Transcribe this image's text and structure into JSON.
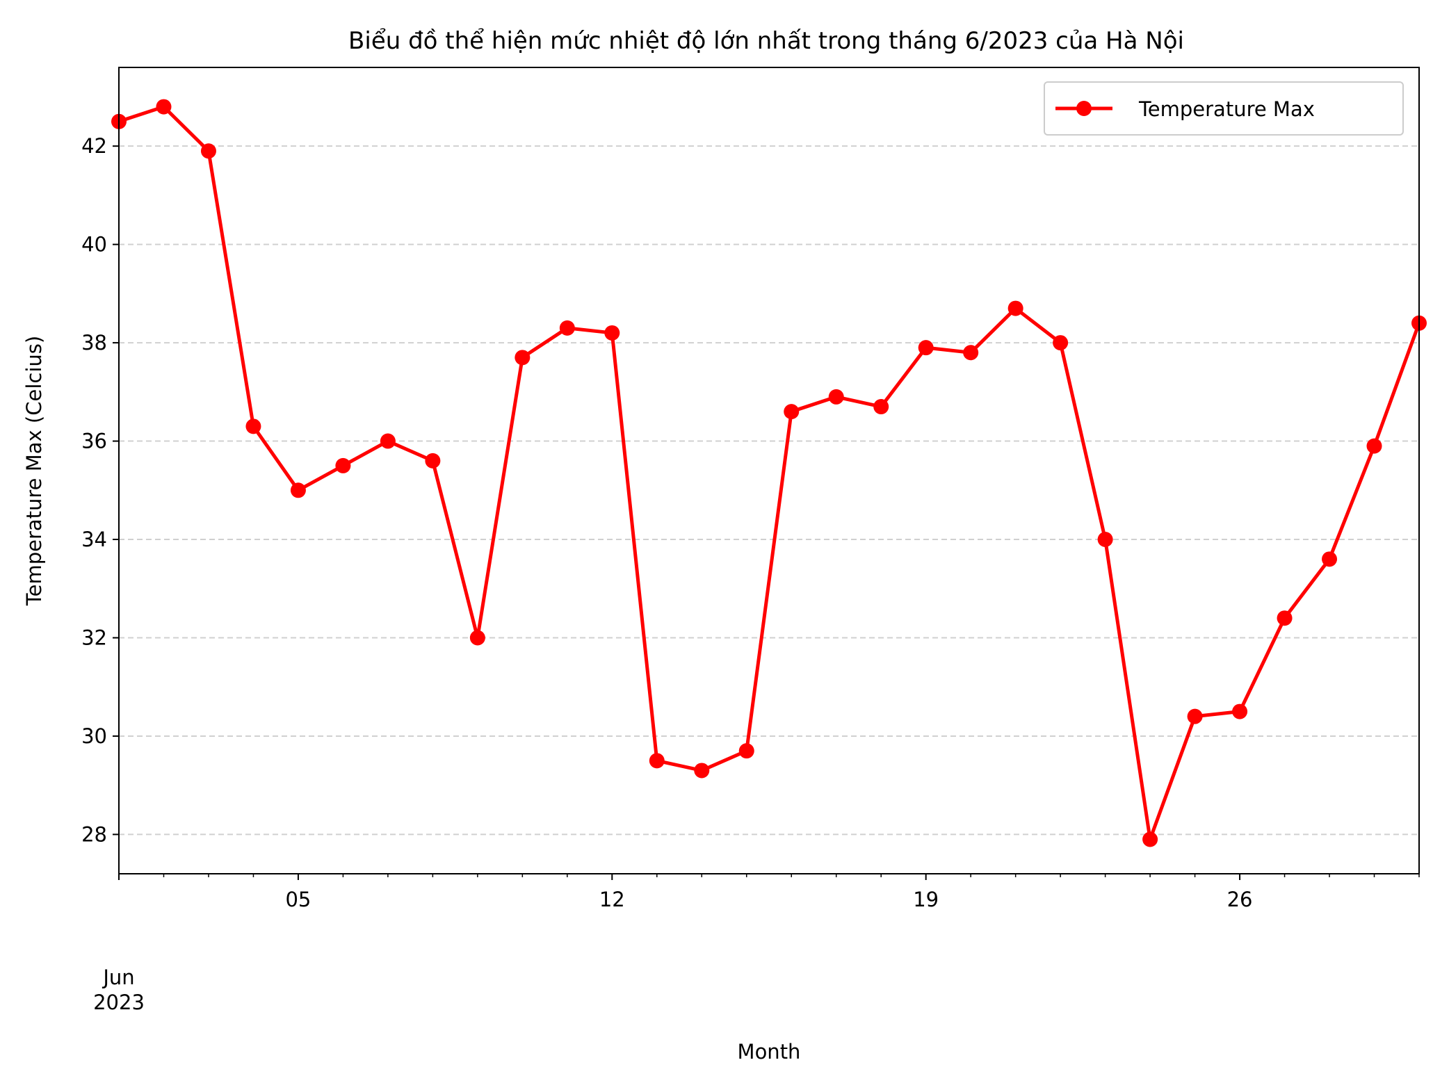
{
  "chart_data": {
    "type": "line",
    "title": "Biểu đồ thể hiện mức nhiệt độ lớn nhất trong tháng 6/2023 của Hà Nội",
    "xlabel": "Month",
    "ylabel": "Temperature Max (Celcius)",
    "x": [
      "2023-06-01",
      "2023-06-02",
      "2023-06-03",
      "2023-06-04",
      "2023-06-05",
      "2023-06-06",
      "2023-06-07",
      "2023-06-08",
      "2023-06-09",
      "2023-06-10",
      "2023-06-11",
      "2023-06-12",
      "2023-06-13",
      "2023-06-14",
      "2023-06-15",
      "2023-06-16",
      "2023-06-17",
      "2023-06-18",
      "2023-06-19",
      "2023-06-20",
      "2023-06-21",
      "2023-06-22",
      "2023-06-23",
      "2023-06-24",
      "2023-06-25",
      "2023-06-26",
      "2023-06-27",
      "2023-06-28",
      "2023-06-29",
      "2023-06-30"
    ],
    "series": [
      {
        "name": "Temperature Max",
        "color": "#ff0000",
        "values": [
          42.5,
          42.8,
          41.9,
          36.3,
          35.0,
          35.5,
          36.0,
          35.6,
          32.0,
          37.7,
          38.3,
          38.2,
          29.5,
          29.3,
          29.7,
          36.6,
          36.9,
          36.7,
          37.9,
          37.8,
          38.7,
          38.0,
          34.0,
          27.9,
          30.4,
          30.5,
          32.4,
          33.6,
          35.9,
          38.4
        ]
      }
    ],
    "xlim": [
      "2023-06-01",
      "2023-06-30"
    ],
    "ylim": [
      27.2,
      43.6
    ],
    "x_ticks": [
      "05",
      "12",
      "19",
      "26"
    ],
    "x_tick_month": "Jun",
    "x_tick_year": "2023",
    "y_ticks": [
      "28",
      "30",
      "32",
      "34",
      "36",
      "38",
      "40",
      "42"
    ],
    "grid": "y-dashed",
    "legend": "top-right"
  }
}
